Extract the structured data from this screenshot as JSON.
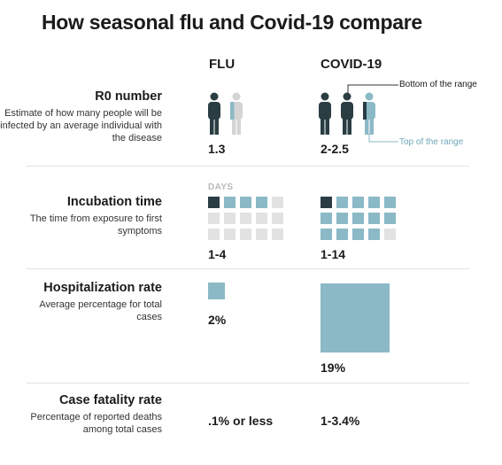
{
  "title": "How seasonal flu and Covid-19 compare",
  "columns": {
    "flu": "FLU",
    "covid": "COVID-19"
  },
  "colors": {
    "dark": "#2a3d42",
    "blue": "#8bb9c6",
    "light": "#e2e2e2",
    "days_label": "#b8b8b8"
  },
  "rows": {
    "r0": {
      "title": "R0 number",
      "description": "Estimate of how many people will be infected by an average individual with the disease",
      "flu_value": "1.3",
      "covid_value": "2-2.5",
      "annotation_bottom": "Bottom of the range",
      "annotation_top": "Top of the range",
      "icon": "person-icon"
    },
    "incubation": {
      "title": "Incubation time",
      "description": "The time from exposure to first symptoms",
      "unit_label": "DAYS",
      "flu_value": "1-4",
      "covid_value": "1-14",
      "flu_days_min": 1,
      "flu_days_max": 4,
      "flu_grid_cells": 15,
      "covid_days_min": 1,
      "covid_days_max": 14,
      "covid_grid_cells": 15
    },
    "hospitalization": {
      "title": "Hospitalization rate",
      "description": "Average percentage for total cases",
      "flu_value": "2%",
      "covid_value": "19%",
      "flu_percent": 2,
      "covid_percent": 19
    },
    "fatality": {
      "title": "Case fatality rate",
      "description": "Percentage of reported deaths among total cases",
      "flu_value": ".1% or less",
      "covid_value": "1-3.4%"
    }
  }
}
